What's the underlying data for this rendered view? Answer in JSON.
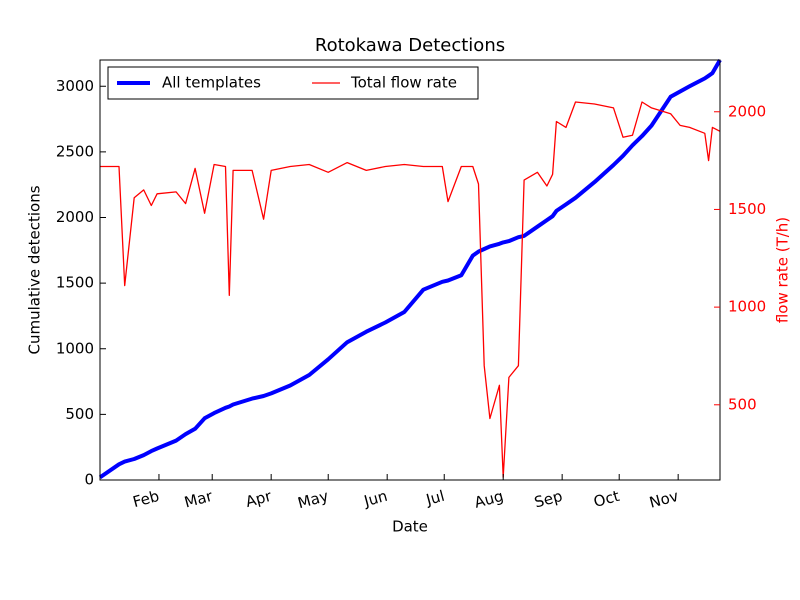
{
  "chart_data": {
    "type": "line",
    "title": "Rotokawa Detections",
    "xlabel": "Date",
    "ylabel": "Cumulative detections",
    "y2label": "flow rate (T/h)",
    "x": [
      0,
      10,
      13,
      18,
      23,
      27,
      30,
      40,
      45,
      50,
      55,
      60,
      66,
      68,
      70,
      80,
      86,
      90,
      100,
      110,
      120,
      130,
      140,
      150,
      160,
      170,
      180,
      183,
      190,
      196,
      199,
      202,
      205,
      210,
      212,
      215,
      220,
      223,
      230,
      235,
      238,
      240,
      245,
      250,
      260,
      270,
      275,
      280,
      285,
      290,
      300,
      305,
      310,
      318,
      320,
      322,
      326
    ],
    "series": [
      {
        "name": "All templates",
        "color": "#0000ff",
        "values": [
          20,
          120,
          140,
          160,
          190,
          220,
          240,
          300,
          350,
          390,
          470,
          510,
          550,
          560,
          575,
          620,
          640,
          660,
          720,
          800,
          920,
          1050,
          1130,
          1200,
          1280,
          1450,
          1510,
          1520,
          1560,
          1710,
          1740,
          1760,
          1780,
          1800,
          1810,
          1820,
          1850,
          1860,
          1930,
          1980,
          2010,
          2050,
          2100,
          2150,
          2270,
          2400,
          2470,
          2550,
          2620,
          2700,
          2920,
          2960,
          3000,
          3060,
          3080,
          3100,
          3200
        ]
      },
      {
        "name": "Total flow rate",
        "color": "#ff0000",
        "axis": "y2",
        "values": [
          1720,
          1720,
          1110,
          1560,
          1600,
          1520,
          1580,
          1590,
          1530,
          1710,
          1480,
          1730,
          1720,
          1060,
          1700,
          1700,
          1450,
          1700,
          1720,
          1730,
          1690,
          1740,
          1700,
          1720,
          1730,
          1720,
          1720,
          1540,
          1720,
          1720,
          1630,
          700,
          430,
          600,
          130,
          640,
          700,
          1650,
          1690,
          1620,
          1680,
          1950,
          1920,
          2050,
          2040,
          2020,
          1870,
          1880,
          2050,
          2020,
          1990,
          1930,
          1920,
          1890,
          1750,
          1920,
          1900
        ]
      }
    ],
    "xlim": [
      0,
      326
    ],
    "xticks": [
      {
        "value": 31,
        "label": "Feb"
      },
      {
        "value": 59,
        "label": "Mar"
      },
      {
        "value": 90,
        "label": "Apr"
      },
      {
        "value": 120,
        "label": "May"
      },
      {
        "value": 151,
        "label": "Jun"
      },
      {
        "value": 181,
        "label": "Jul"
      },
      {
        "value": 212,
        "label": "Aug"
      },
      {
        "value": 243,
        "label": "Sep"
      },
      {
        "value": 273,
        "label": "Oct"
      },
      {
        "value": 304,
        "label": "Nov"
      }
    ],
    "ylim": [
      0,
      3200
    ],
    "yticks": [
      0,
      500,
      1000,
      1500,
      2000,
      2500,
      3000
    ],
    "y2lim": [
      115,
      2265
    ],
    "y2ticks": [
      500,
      1000,
      1500,
      2000
    ],
    "legend": "upper left"
  }
}
